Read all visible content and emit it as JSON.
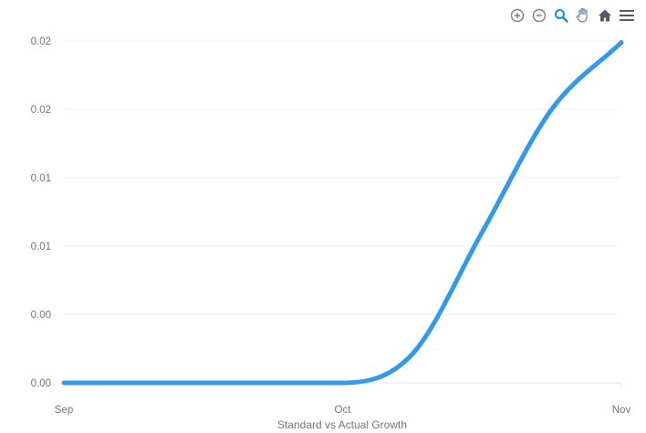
{
  "chart_data": {
    "type": "line",
    "title": "",
    "xlabel": "Standard vs Actual Growth",
    "ylabel": "",
    "x_ticks": [
      "Sep",
      "Oct",
      "Nov"
    ],
    "y_tick_labels": [
      "0.00",
      "0.00",
      "0.01",
      "0.01",
      "0.02",
      "0.02"
    ],
    "ylim": [
      0,
      0.025
    ],
    "grid": "horizontal",
    "series": [
      {
        "color": "#3399ea",
        "x": [
          "Sep",
          "Sep 16",
          "Oct",
          "Oct 8",
          "Oct 16",
          "Oct 24",
          "Nov"
        ],
        "values": [
          0,
          0,
          0,
          0.0021,
          0.011,
          0.02,
          0.0249
        ]
      }
    ]
  },
  "toolbar": {
    "icons": [
      "zoom-in-icon",
      "zoom-out-icon",
      "magnifier-icon",
      "pan-hand-icon",
      "home-icon",
      "menu-icon"
    ],
    "active_color": "#1e88e5",
    "idle_color": "#6e8192"
  }
}
